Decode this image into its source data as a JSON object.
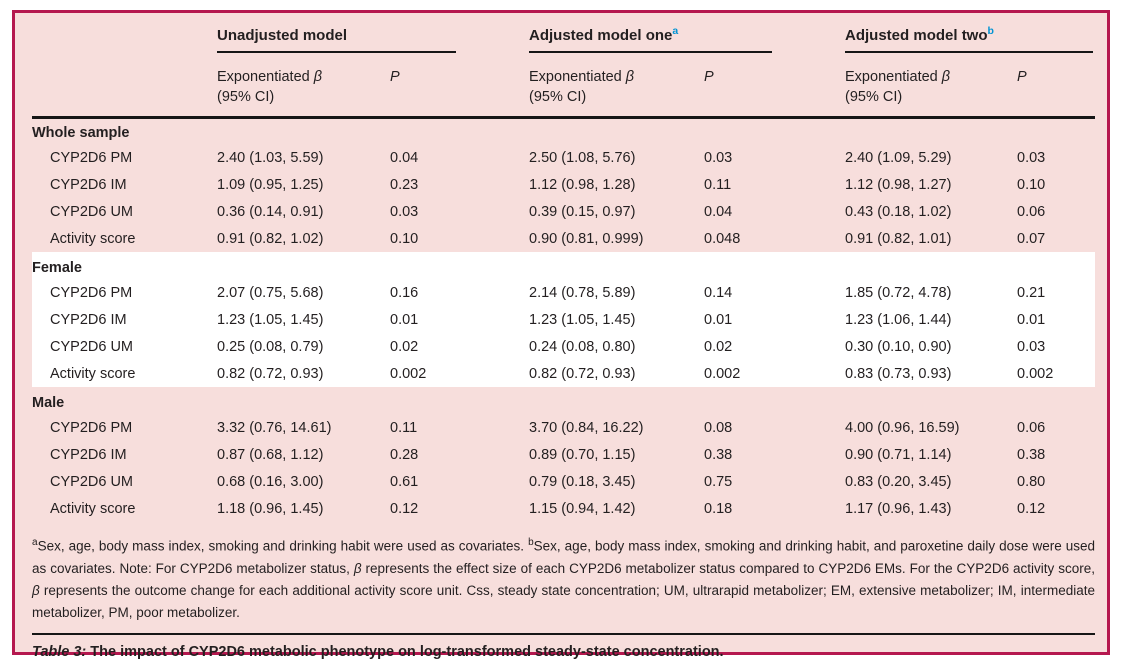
{
  "colors": {
    "border": "#b5184f",
    "bg": "#f7dedc",
    "highlight": "#ffffff",
    "rule": "#161616",
    "accent": "#0093d3",
    "text": "#231f20"
  },
  "table": {
    "models": [
      {
        "name": "Unadjusted model",
        "sup": ""
      },
      {
        "name": "Adjusted model one",
        "sup": "a"
      },
      {
        "name": "Adjusted model two",
        "sup": "b"
      }
    ],
    "subheaders": {
      "exp_word": "Exponentiated",
      "beta": "β",
      "ci": "(95% CI)",
      "p": "P"
    },
    "sections": [
      {
        "name": "Whole sample",
        "highlight": false,
        "rows": [
          {
            "label": "CYP2D6 PM",
            "cells": [
              "2.40 (1.03, 5.59)",
              "0.04",
              "2.50 (1.08, 5.76)",
              "0.03",
              "2.40 (1.09, 5.29)",
              "0.03"
            ]
          },
          {
            "label": "CYP2D6 IM",
            "cells": [
              "1.09 (0.95, 1.25)",
              "0.23",
              "1.12 (0.98, 1.28)",
              "0.11",
              "1.12 (0.98, 1.27)",
              "0.10"
            ]
          },
          {
            "label": "CYP2D6 UM",
            "cells": [
              "0.36 (0.14, 0.91)",
              "0.03",
              "0.39 (0.15, 0.97)",
              "0.04",
              "0.43 (0.18, 1.02)",
              "0.06"
            ]
          },
          {
            "label": "Activity score",
            "cells": [
              "0.91 (0.82, 1.02)",
              "0.10",
              "0.90 (0.81, 0.999)",
              "0.048",
              "0.91 (0.82, 1.01)",
              "0.07"
            ]
          }
        ]
      },
      {
        "name": "Female",
        "highlight": true,
        "rows": [
          {
            "label": "CYP2D6 PM",
            "cells": [
              "2.07 (0.75, 5.68)",
              "0.16",
              "2.14 (0.78, 5.89)",
              "0.14",
              "1.85 (0.72, 4.78)",
              "0.21"
            ]
          },
          {
            "label": "CYP2D6 IM",
            "cells": [
              "1.23 (1.05, 1.45)",
              "0.01",
              "1.23 (1.05, 1.45)",
              "0.01",
              "1.23 (1.06, 1.44)",
              "0.01"
            ]
          },
          {
            "label": "CYP2D6 UM",
            "cells": [
              "0.25 (0.08, 0.79)",
              "0.02",
              "0.24 (0.08, 0.80)",
              "0.02",
              "0.30 (0.10, 0.90)",
              "0.03"
            ]
          },
          {
            "label": "Activity score",
            "cells": [
              "0.82 (0.72, 0.93)",
              "0.002",
              "0.82 (0.72, 0.93)",
              "0.002",
              "0.83 (0.73, 0.93)",
              "0.002"
            ]
          }
        ]
      },
      {
        "name": "Male",
        "highlight": false,
        "rows": [
          {
            "label": "CYP2D6 PM",
            "cells": [
              "3.32 (0.76, 14.61)",
              "0.11",
              "3.70 (0.84, 16.22)",
              "0.08",
              "4.00 (0.96, 16.59)",
              "0.06"
            ]
          },
          {
            "label": "CYP2D6 IM",
            "cells": [
              "0.87 (0.68, 1.12)",
              "0.28",
              "0.89 (0.70, 1.15)",
              "0.38",
              "0.90 (0.71, 1.14)",
              "0.38"
            ]
          },
          {
            "label": "CYP2D6 UM",
            "cells": [
              "0.68 (0.16, 3.00)",
              "0.61",
              "0.79 (0.18, 3.45)",
              "0.75",
              "0.83 (0.20, 3.45)",
              "0.80"
            ]
          },
          {
            "label": "Activity score",
            "cells": [
              "1.18 (0.96, 1.45)",
              "0.12",
              "1.15 (0.94, 1.42)",
              "0.18",
              "1.17 (0.96, 1.43)",
              "0.12"
            ]
          }
        ]
      }
    ]
  },
  "footnote": {
    "sup_a": "a",
    "seg1": "Sex, age, body mass index, smoking and drinking habit were used as covariates. ",
    "sup_b": "b",
    "seg2": "Sex, age, body mass index, smoking and drinking habit, and paroxetine daily dose were used as covariates. Note: For CYP2D6 metabolizer status, ",
    "beta1": "β",
    "seg3": " represents the effect size of each CYP2D6 metabolizer status compared to CYP2D6 EMs. For the CYP2D6 activity score, ",
    "beta2": "β",
    "seg4": " represents the outcome change for each additional activity score unit. Css, steady state concentration; UM, ultrarapid metabolizer; EM, extensive metabolizer; IM, intermediate metabolizer, PM, poor metabolizer."
  },
  "caption": {
    "label": "Table 3:",
    "text": " The impact of CYP2D6 metabolic phenotype on log-transformed steady-state concentration."
  }
}
